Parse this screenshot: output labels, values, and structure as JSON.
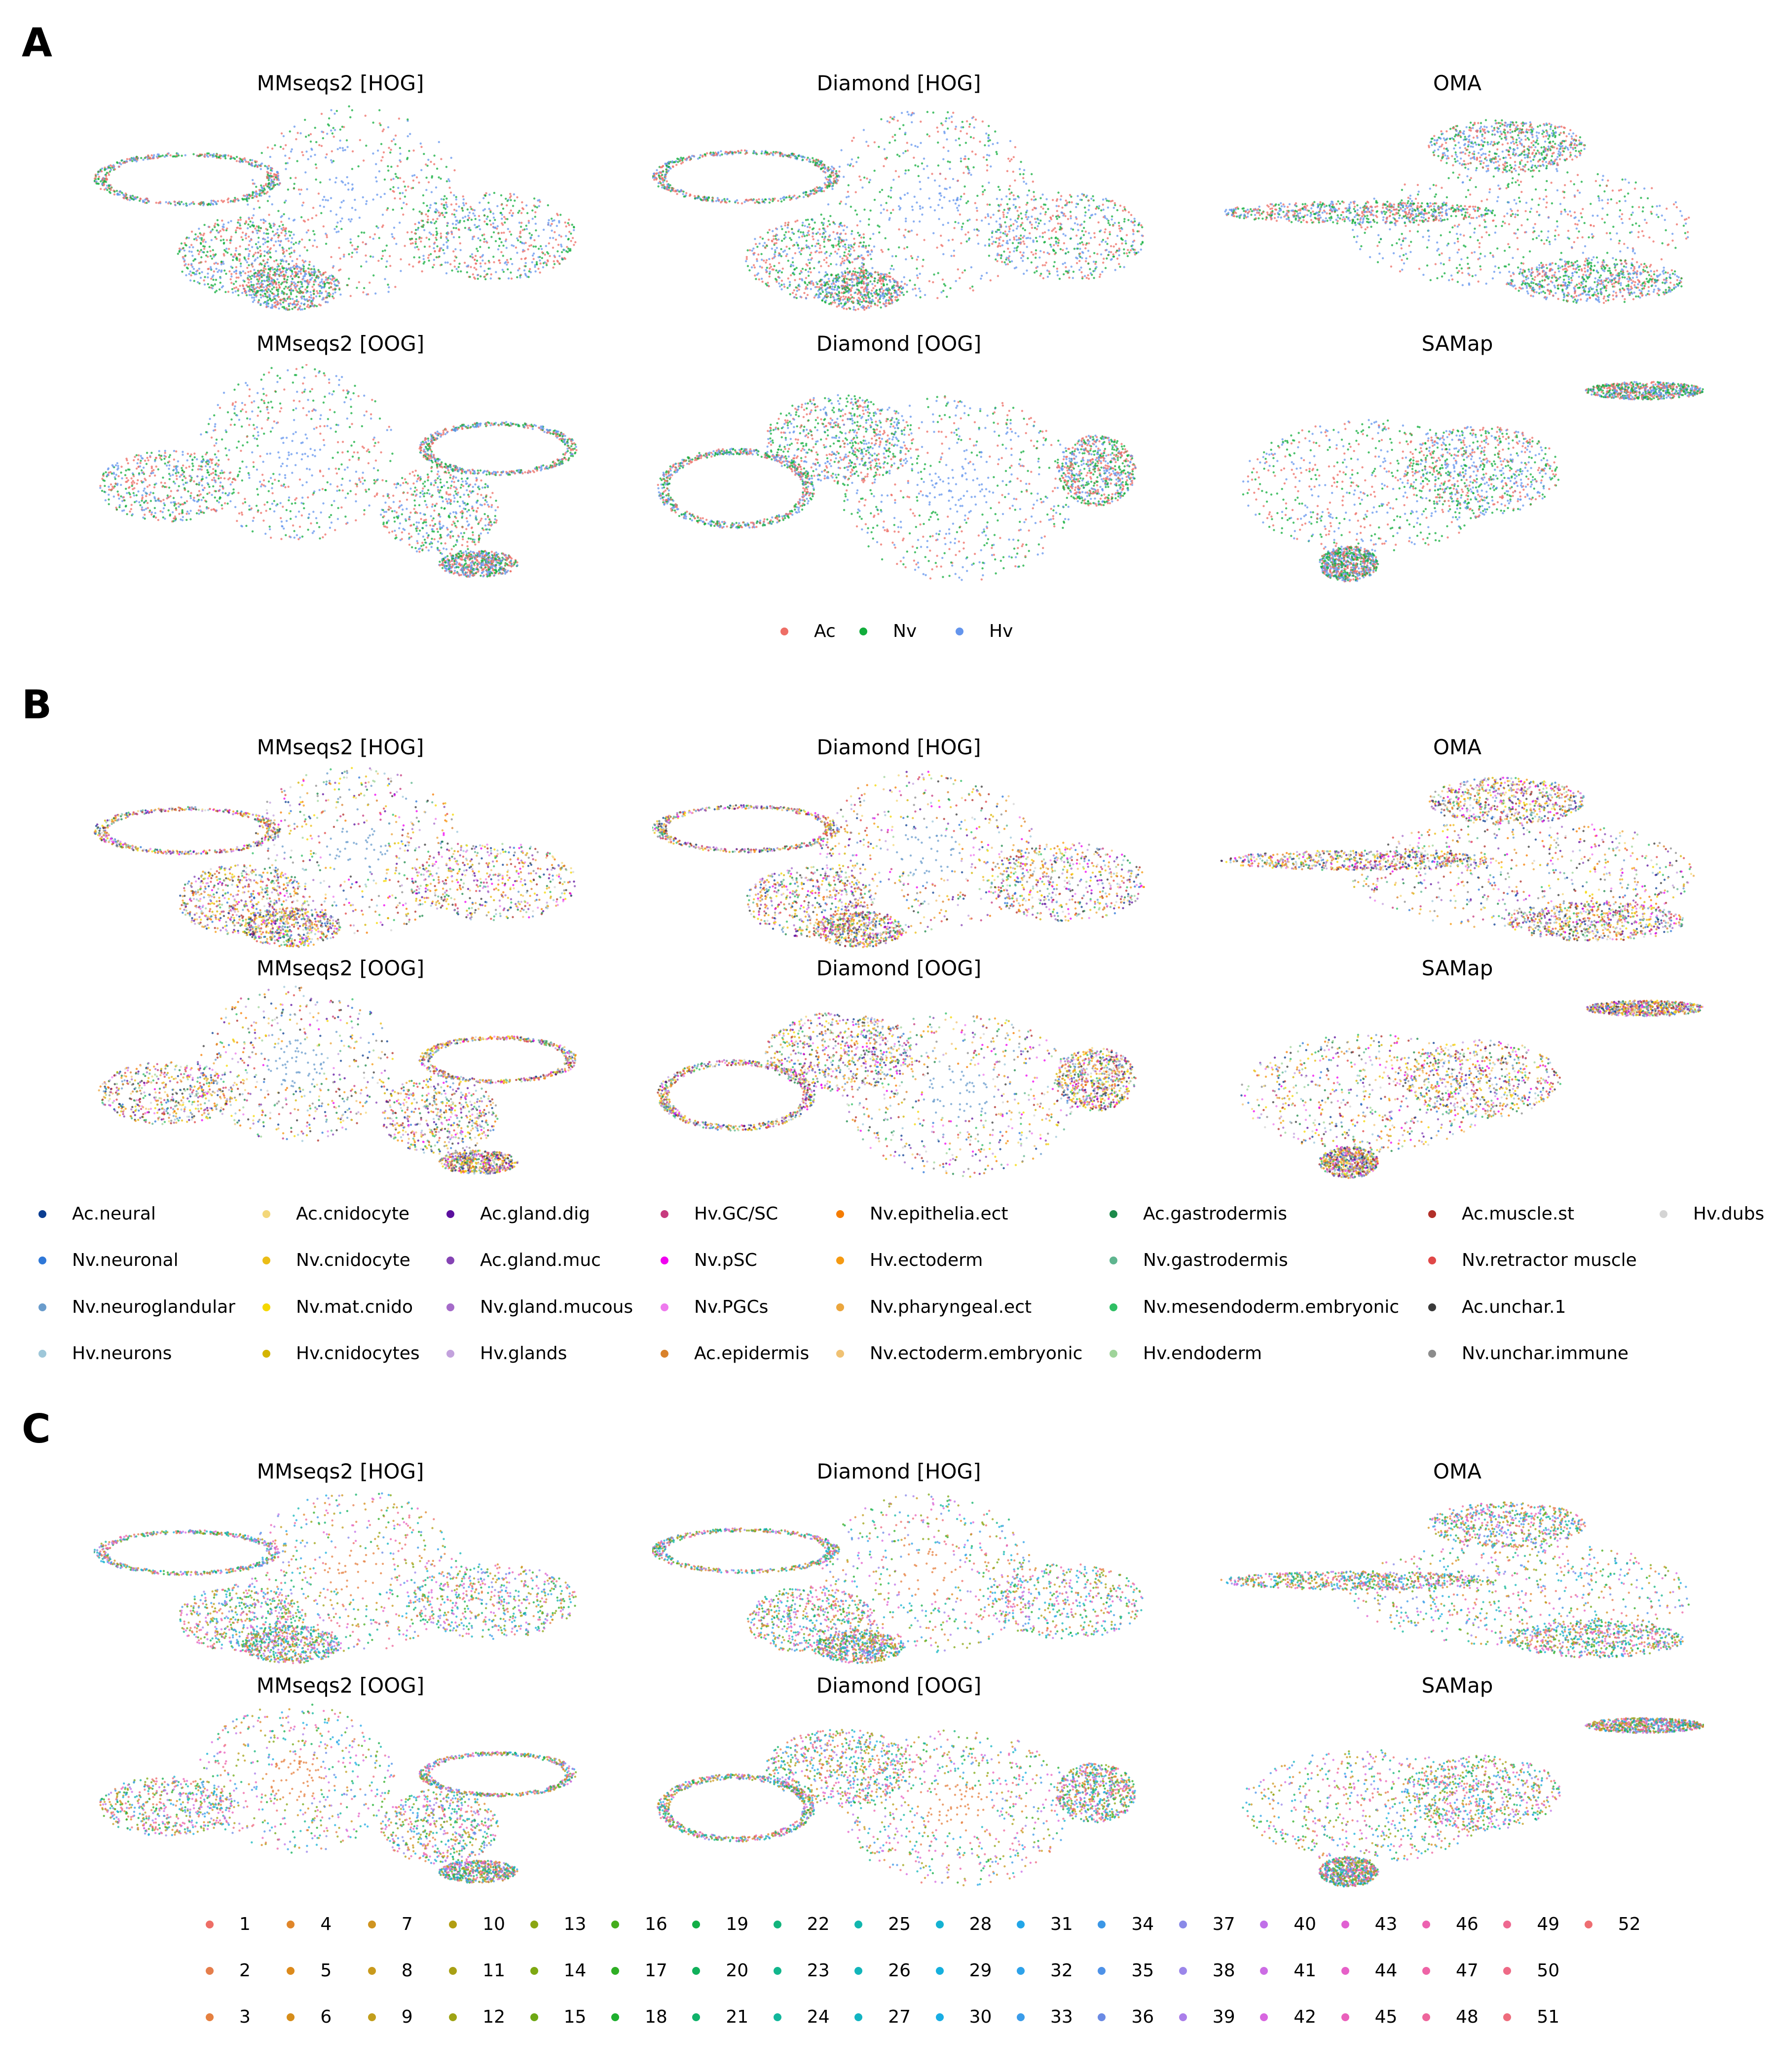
{
  "chart_data": [
    {
      "type": "scatter",
      "panel": "A",
      "subplot_titles": [
        "MMseqs2 [HOG]",
        "Diamond [HOG]",
        "OMA",
        "MMseqs2 [OOG]",
        "Diamond [OOG]",
        "SAMap"
      ],
      "legend": [
        {
          "label": "Ac",
          "color": "#ee6e66"
        },
        {
          "label": "Nv",
          "color": "#12ad3c"
        },
        {
          "label": "Hv",
          "color": "#6495ed"
        }
      ]
    },
    {
      "type": "scatter",
      "panel": "B",
      "subplot_titles": [
        "MMseqs2 [HOG]",
        "Diamond [HOG]",
        "OMA",
        "MMseqs2 [OOG]",
        "Diamond [OOG]",
        "SAMap"
      ],
      "legend": [
        {
          "label": "Ac.neural",
          "color": "#0b3d91"
        },
        {
          "label": "Nv.neuronal",
          "color": "#2f78d8"
        },
        {
          "label": "Nv.neuroglandular",
          "color": "#6a9ccc"
        },
        {
          "label": "Hv.neurons",
          "color": "#9ec7d9"
        },
        {
          "label": "Ac.cnidocyte",
          "color": "#f3d77a"
        },
        {
          "label": "Nv.cnidocyte",
          "color": "#ebbd16"
        },
        {
          "label": "Nv.mat.cnido",
          "color": "#f5d800"
        },
        {
          "label": "Hv.cnidocytes",
          "color": "#d4b400"
        },
        {
          "label": "Ac.gland.dig",
          "color": "#5b0f9e"
        },
        {
          "label": "Ac.gland.muc",
          "color": "#8544b4"
        },
        {
          "label": "Nv.gland.mucous",
          "color": "#a56bc9"
        },
        {
          "label": "Hv.glands",
          "color": "#c3a2dd"
        },
        {
          "label": "Hv.GC/SC",
          "color": "#c73a7e"
        },
        {
          "label": "Nv.pSC",
          "color": "#f000f0"
        },
        {
          "label": "Nv.PGCs",
          "color": "#ee7aee"
        },
        {
          "label": "Ac.epidermis",
          "color": "#d9822b"
        },
        {
          "label": "Nv.epithelia.ect",
          "color": "#f57c00"
        },
        {
          "label": "Hv.ectoderm",
          "color": "#f59a12"
        },
        {
          "label": "Nv.pharyngeal.ect",
          "color": "#eba63e"
        },
        {
          "label": "Nv.ectoderm.embryonic",
          "color": "#f0c274"
        },
        {
          "label": "Ac.gastrodermis",
          "color": "#1c8a4a"
        },
        {
          "label": "Nv.gastrodermis",
          "color": "#5fb58f"
        },
        {
          "label": "Nv.mesendoderm.embryonic",
          "color": "#2fbf64"
        },
        {
          "label": "Hv.endoderm",
          "color": "#9fd49a"
        },
        {
          "label": "Ac.muscle.st",
          "color": "#b2302a"
        },
        {
          "label": "Nv.retractor muscle",
          "color": "#e04848"
        },
        {
          "label": "Ac.unchar.1",
          "color": "#3a3a3a"
        },
        {
          "label": "Nv.unchar.immune",
          "color": "#8c8c8c"
        },
        {
          "label": "Hv.dubs",
          "color": "#d4d4d4"
        }
      ]
    },
    {
      "type": "scatter",
      "panel": "C",
      "subplot_titles": [
        "MMseqs2 [HOG]",
        "Diamond [HOG]",
        "OMA",
        "MMseqs2 [OOG]",
        "Diamond [OOG]",
        "SAMap"
      ],
      "legend": [
        {
          "label": "1",
          "color": "#ee6e66"
        },
        {
          "label": "2",
          "color": "#e57e4c"
        },
        {
          "label": "3",
          "color": "#e58040"
        },
        {
          "label": "4",
          "color": "#e0862a"
        },
        {
          "label": "5",
          "color": "#dc8a1c"
        },
        {
          "label": "6",
          "color": "#d68d1a"
        },
        {
          "label": "7",
          "color": "#cf9420"
        },
        {
          "label": "8",
          "color": "#c99a1c"
        },
        {
          "label": "9",
          "color": "#c29e1c"
        },
        {
          "label": "10",
          "color": "#b29e12"
        },
        {
          "label": "11",
          "color": "#a8a014"
        },
        {
          "label": "12",
          "color": "#9ea314"
        },
        {
          "label": "13",
          "color": "#8aa612"
        },
        {
          "label": "14",
          "color": "#7ea812"
        },
        {
          "label": "15",
          "color": "#6ea814"
        },
        {
          "label": "16",
          "color": "#44ad1c"
        },
        {
          "label": "17",
          "color": "#2eae24"
        },
        {
          "label": "18",
          "color": "#1eaf2e"
        },
        {
          "label": "19",
          "color": "#12ae46"
        },
        {
          "label": "20",
          "color": "#10b05a"
        },
        {
          "label": "21",
          "color": "#10b26a"
        },
        {
          "label": "22",
          "color": "#12b47c"
        },
        {
          "label": "23",
          "color": "#12b68c"
        },
        {
          "label": "24",
          "color": "#12b79c"
        },
        {
          "label": "25",
          "color": "#12b6ae"
        },
        {
          "label": "26",
          "color": "#12b5ba"
        },
        {
          "label": "27",
          "color": "#12b4c2"
        },
        {
          "label": "28",
          "color": "#14b2d2"
        },
        {
          "label": "29",
          "color": "#16b0de"
        },
        {
          "label": "30",
          "color": "#18ade4"
        },
        {
          "label": "31",
          "color": "#22a6e8"
        },
        {
          "label": "32",
          "color": "#2ea2ea"
        },
        {
          "label": "33",
          "color": "#3a9cea"
        },
        {
          "label": "34",
          "color": "#3b97e6"
        },
        {
          "label": "35",
          "color": "#4e92e8"
        },
        {
          "label": "36",
          "color": "#6a8ae4"
        },
        {
          "label": "37",
          "color": "#8a8ae8"
        },
        {
          "label": "38",
          "color": "#9b86ea"
        },
        {
          "label": "39",
          "color": "#aa7eea"
        },
        {
          "label": "40",
          "color": "#c070e8"
        },
        {
          "label": "41",
          "color": "#cc6ce4"
        },
        {
          "label": "42",
          "color": "#d866e0"
        },
        {
          "label": "43",
          "color": "#e060d2"
        },
        {
          "label": "44",
          "color": "#e660c8"
        },
        {
          "label": "45",
          "color": "#ea60bc"
        },
        {
          "label": "46",
          "color": "#ec62b0"
        },
        {
          "label": "47",
          "color": "#ee64a6"
        },
        {
          "label": "48",
          "color": "#ee669c"
        },
        {
          "label": "49",
          "color": "#ee6890"
        },
        {
          "label": "50",
          "color": "#ee6a86"
        },
        {
          "label": "51",
          "color": "#ee6c7c"
        },
        {
          "label": "52",
          "color": "#ee6e72"
        }
      ]
    }
  ]
}
